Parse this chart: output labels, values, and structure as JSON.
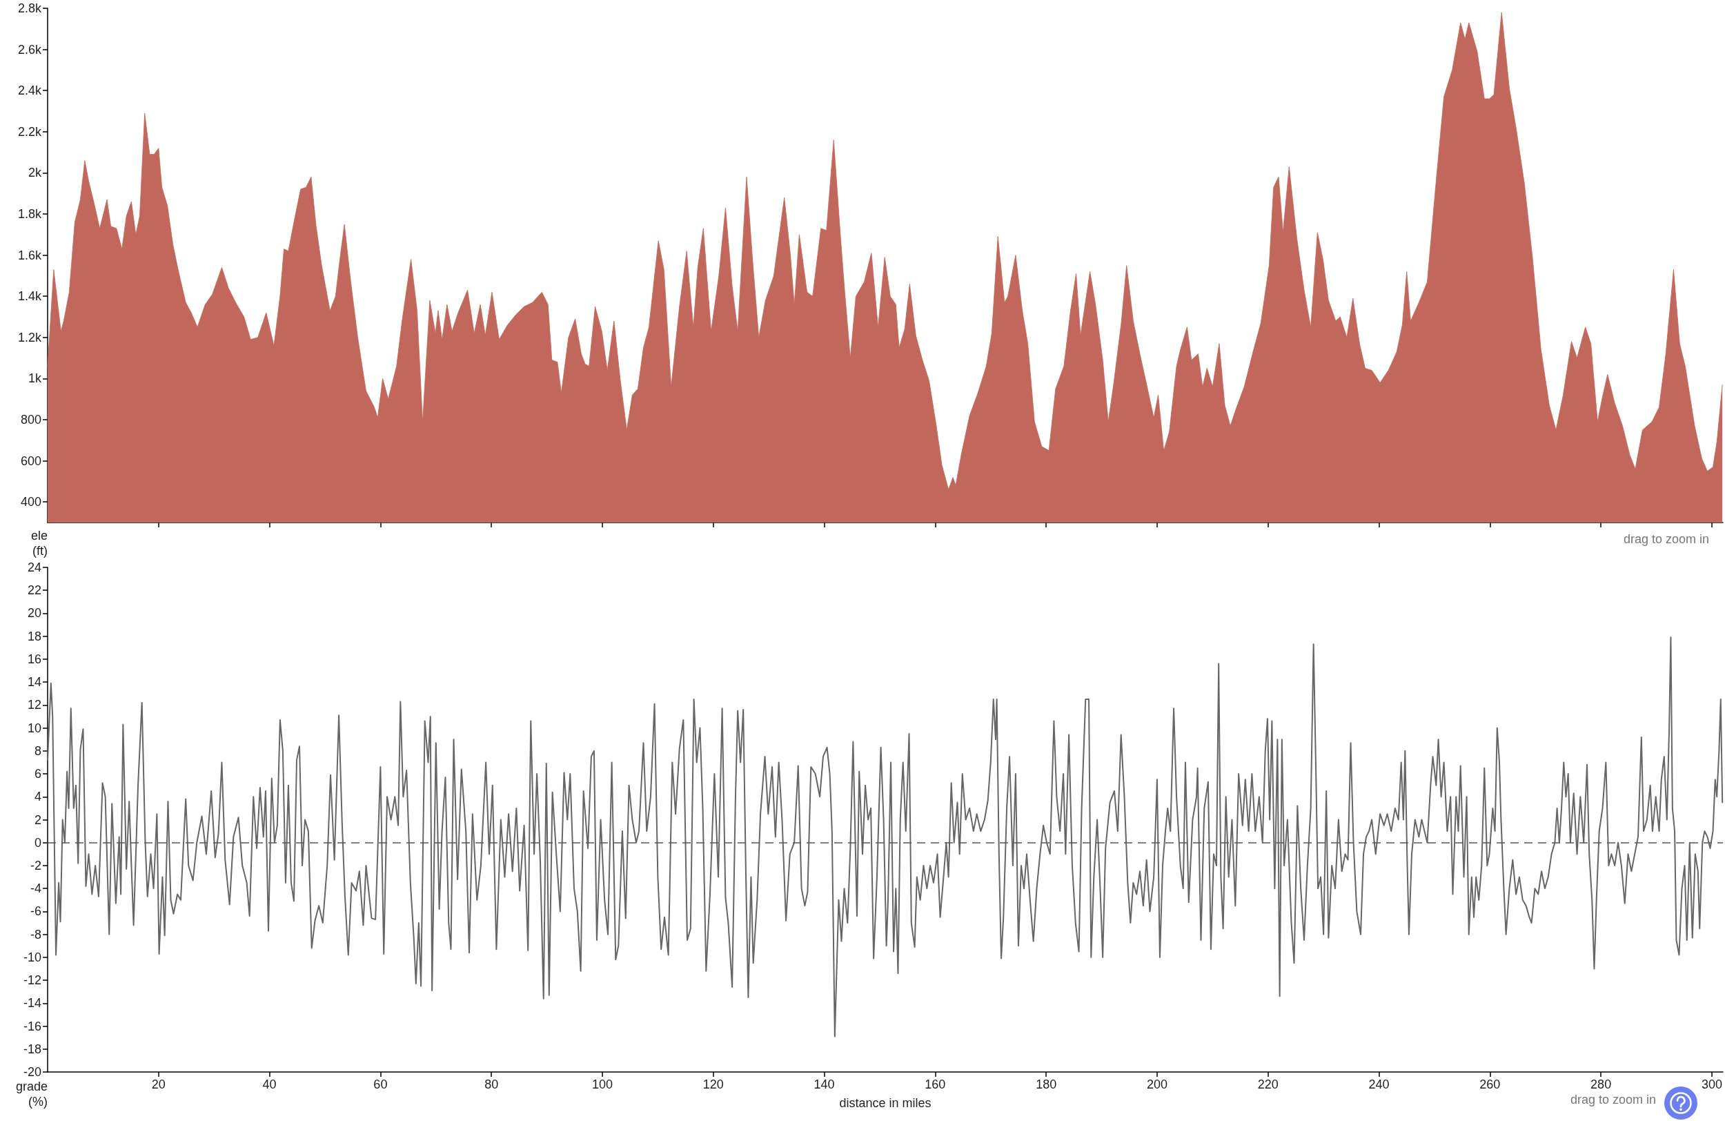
{
  "chart_data": [
    {
      "type": "area",
      "ylabel": "ele\n(ft)",
      "color": "#c1675c",
      "xlim": [
        0,
        302
      ],
      "xticks": [
        20,
        40,
        60,
        80,
        100,
        120,
        140,
        160,
        180,
        200,
        220,
        240,
        260,
        280,
        300
      ],
      "tick_labels": "y",
      "ylim": [
        300,
        2800
      ],
      "yticks": [
        400,
        600,
        800,
        {
          "value": 1000,
          "label": "1k"
        },
        {
          "value": 1200,
          "label": "1.2k"
        },
        {
          "value": 1400,
          "label": "1.4k"
        },
        {
          "value": 1600,
          "label": "1.6k"
        },
        {
          "value": 1800,
          "label": "1.8k"
        },
        {
          "value": 2000,
          "label": "2k"
        },
        {
          "value": 2200,
          "label": "2.2k"
        },
        {
          "value": 2400,
          "label": "2.4k"
        },
        {
          "value": 2600,
          "label": "2.6k"
        },
        {
          "value": 2800,
          "label": "2.8k"
        }
      ],
      "annotations": [
        "drag to zoom in"
      ],
      "x": [
        0,
        1.1,
        2.4,
        2.9,
        3.9,
        4.9,
        5.9,
        6.7,
        7.4,
        8.4,
        9.4,
        10.7,
        11.4,
        12.4,
        13.4,
        14.2,
        15.1,
        15.9,
        16.6,
        17.5,
        18.4,
        19.2,
        20,
        20.6,
        21.6,
        22.6,
        23.6,
        24.9,
        25.9,
        27,
        28.4,
        29.7,
        31.4,
        32.6,
        33.9,
        35.4,
        36.6,
        37.9,
        39.4,
        40.8,
        41.9,
        42.6,
        43.4,
        44.4,
        45.6,
        46.6,
        47.5,
        48.4,
        49.4,
        50.9,
        51.9,
        52.6,
        53.5,
        54.6,
        55.9,
        57.4,
        58.9,
        59.5,
        60.4,
        61.4,
        62.9,
        63.9,
        65.5,
        66.6,
        67.6,
        68.9,
        69.9,
        70.4,
        71.1,
        72,
        72.9,
        74,
        75.7,
        76.9,
        78,
        78.9,
        80.1,
        81.4,
        82.9,
        84.4,
        85.9,
        87.4,
        89.1,
        90.2,
        90.9,
        91.9,
        92.6,
        93.9,
        95.1,
        96.2,
        96.9,
        97.6,
        98.7,
        99.9,
        100.9,
        102.1,
        103.2,
        104.4,
        105.4,
        106.4,
        107.4,
        108.4,
        110.1,
        111.1,
        112.4,
        113.9,
        115.2,
        116.4,
        117.2,
        118.2,
        119.6,
        121,
        122.2,
        123.4,
        124.4,
        126,
        127.1,
        128.2,
        129.4,
        130.9,
        132.8,
        133.9,
        134.6,
        135.5,
        136.9,
        137.9,
        139.4,
        140.4,
        141.7,
        142.9,
        143.7,
        144.7,
        145.7,
        147.2,
        148.5,
        149.7,
        150.9,
        151.9,
        152.9,
        153.5,
        154.5,
        155.4,
        156.5,
        157.7,
        158.9,
        160.2,
        161.2,
        162.4,
        163.2,
        163.7,
        164.7,
        166.2,
        167.7,
        169.2,
        170.2,
        171.3,
        172.5,
        173.1,
        174.5,
        175.7,
        176.7,
        177.9,
        179.2,
        180.5,
        181.7,
        183.2,
        184.4,
        185.4,
        186.2,
        187.9,
        188.9,
        190.2,
        191.2,
        192.2,
        193.5,
        194.5,
        195.7,
        196.9,
        198.2,
        199.4,
        200.2,
        201.2,
        202.2,
        203.5,
        204.2,
        205.4,
        206.2,
        207.4,
        208.2,
        209,
        210,
        211.2,
        212.2,
        213.2,
        214.2,
        215.7,
        217.2,
        218.7,
        220.2,
        221,
        221.9,
        222.7,
        223.8,
        225.2,
        226.5,
        227.7,
        228.9,
        229.9,
        230.9,
        232.2,
        233,
        234.2,
        235.3,
        236.5,
        237.5,
        238.7,
        240.2,
        241.7,
        243.2,
        244.2,
        245,
        245.7,
        247.2,
        248.7,
        250.2,
        251.7,
        253.2,
        254.7,
        255.5,
        256.2,
        257.7,
        259,
        259.9,
        260.7,
        262.1,
        263.5,
        264.7,
        266.2,
        267.7,
        269.2,
        270.7,
        271.9,
        273.2,
        274.7,
        275.7,
        277.2,
        278.2,
        279.4,
        280.2,
        281.2,
        282.5,
        283.9,
        285.2,
        286.2,
        287.5,
        289.2,
        290.5,
        291.7,
        293.1,
        294.2,
        295.2,
        296.9,
        298.2,
        299.2,
        300.2,
        300.9,
        301.9
      ],
      "values": [
        1060,
        1530,
        1230,
        1280,
        1420,
        1760,
        1870,
        2060,
        1960,
        1850,
        1730,
        1870,
        1740,
        1730,
        1630,
        1790,
        1860,
        1700,
        1790,
        2290,
        2090,
        2090,
        2120,
        1930,
        1840,
        1650,
        1520,
        1370,
        1320,
        1250,
        1360,
        1410,
        1540,
        1440,
        1370,
        1300,
        1190,
        1200,
        1320,
        1160,
        1400,
        1630,
        1620,
        1760,
        1920,
        1930,
        1980,
        1740,
        1550,
        1330,
        1400,
        1560,
        1750,
        1480,
        1200,
        940,
        860,
        810,
        1000,
        900,
        1060,
        1280,
        1580,
        1330,
        790,
        1380,
        1220,
        1330,
        1190,
        1360,
        1230,
        1320,
        1430,
        1220,
        1360,
        1210,
        1420,
        1190,
        1260,
        1310,
        1350,
        1370,
        1420,
        1360,
        1090,
        1080,
        930,
        1200,
        1290,
        1120,
        1070,
        1060,
        1350,
        1230,
        1040,
        1280,
        1000,
        750,
        920,
        950,
        1150,
        1250,
        1670,
        1530,
        960,
        1350,
        1620,
        1250,
        1540,
        1730,
        1230,
        1500,
        1830,
        1450,
        1230,
        1980,
        1570,
        1200,
        1380,
        1500,
        1880,
        1600,
        1360,
        1700,
        1420,
        1400,
        1730,
        1720,
        2160,
        1700,
        1420,
        1100,
        1400,
        1470,
        1610,
        1250,
        1590,
        1400,
        1360,
        1150,
        1240,
        1460,
        1210,
        1090,
        990,
        770,
        580,
        460,
        520,
        480,
        630,
        820,
        930,
        1060,
        1220,
        1690,
        1370,
        1400,
        1600,
        1330,
        1170,
        790,
        670,
        650,
        950,
        1060,
        1330,
        1510,
        1210,
        1520,
        1360,
        1090,
        790,
        980,
        1260,
        1550,
        1280,
        1120,
        960,
        810,
        920,
        650,
        740,
        1060,
        1140,
        1250,
        1090,
        1120,
        960,
        1050,
        960,
        1170,
        870,
        770,
        850,
        960,
        1120,
        1270,
        1550,
        1930,
        1980,
        1710,
        2030,
        1680,
        1430,
        1250,
        1710,
        1580,
        1380,
        1280,
        1300,
        1200,
        1390,
        1170,
        1050,
        1040,
        980,
        1040,
        1130,
        1260,
        1520,
        1280,
        1370,
        1470,
        1930,
        2370,
        2500,
        2730,
        2650,
        2730,
        2590,
        2360,
        2360,
        2380,
        2780,
        2410,
        2220,
        1950,
        1580,
        1140,
        870,
        750,
        920,
        1180,
        1100,
        1250,
        1170,
        790,
        900,
        1020,
        880,
        770,
        630,
        560,
        750,
        790,
        860,
        1120,
        1530,
        1170,
        1060,
        770,
        610,
        550,
        570,
        690,
        970
      ]
    },
    {
      "type": "line",
      "xlabel": "distance in miles",
      "ylabel": "grade\n(%)",
      "color": "#666666",
      "xlim": [
        0,
        302
      ],
      "xticks": [
        20,
        40,
        60,
        80,
        100,
        120,
        140,
        160,
        180,
        200,
        220,
        240,
        260,
        280,
        300
      ],
      "ylim": [
        -20,
        24
      ],
      "yticks": [
        -20,
        -18,
        -16,
        -14,
        -12,
        -10,
        -8,
        -6,
        -4,
        -2,
        0,
        2,
        4,
        6,
        8,
        10,
        12,
        14,
        16,
        18,
        20,
        22,
        24
      ],
      "ref_lines": [
        {
          "axis": "y",
          "value": 0,
          "line_style": "dashed",
          "color": "#555555"
        }
      ],
      "annotations": [
        "drag to zoom in"
      ],
      "x": [
        0,
        0.6,
        0.9,
        1.5,
        2,
        2.3,
        2.7,
        3.1,
        3.5,
        3.8,
        4.2,
        4.7,
        5.1,
        5.5,
        5.9,
        6.4,
        6.9,
        7.4,
        8,
        8.6,
        9.2,
        9.9,
        10.4,
        11.1,
        11.6,
        12.3,
        12.9,
        13.2,
        13.6,
        14.2,
        14.7,
        15.1,
        15.5,
        16.3,
        17,
        17.6,
        18,
        18.6,
        19.1,
        19.7,
        20.1,
        20.7,
        21.1,
        21.7,
        22.2,
        22.7,
        23.4,
        24,
        24.9,
        25.4,
        26.2,
        26.9,
        27.8,
        28.6,
        29.5,
        30.2,
        30.8,
        31.4,
        32,
        32.8,
        33.5,
        34.4,
        35.1,
        35.9,
        36.4,
        37.1,
        37.7,
        38.3,
        38.9,
        39.3,
        39.8,
        40.4,
        40.9,
        41.4,
        41.9,
        42.4,
        42.9,
        43.4,
        43.9,
        44.4,
        44.9,
        45.4,
        45.9,
        46.4,
        47,
        47.6,
        48.2,
        48.9,
        49.6,
        50.4,
        51,
        51.7,
        52.5,
        53.1,
        53.6,
        54.2,
        54.8,
        55.6,
        56.2,
        56.9,
        57.4,
        58.4,
        59.1,
        60,
        60.6,
        61.2,
        61.9,
        62.6,
        63.2,
        63.6,
        64.1,
        64.7,
        65.4,
        66,
        66.4,
        66.9,
        67.3,
        68,
        68.6,
        69,
        69.3,
        70,
        70.6,
        71.1,
        71.7,
        72.3,
        72.7,
        73.2,
        73.9,
        74.6,
        75.4,
        76,
        76.6,
        77.4,
        78.1,
        79,
        79.6,
        80.2,
        80.9,
        81.7,
        82.4,
        83.1,
        83.8,
        84.5,
        85.1,
        85.9,
        86.6,
        87.1,
        87.7,
        88.2,
        88.8,
        89.4,
        89.9,
        90.4,
        91,
        91.7,
        92.4,
        93.1,
        93.7,
        94.2,
        94.9,
        95.5,
        96.1,
        96.6,
        97.4,
        98,
        98.5,
        99,
        99.7,
        100.4,
        101,
        101.7,
        102.4,
        102.9,
        103.6,
        104.2,
        104.8,
        105.4,
        106.1,
        106.6,
        107.4,
        108,
        108.7,
        109.4,
        110,
        110.6,
        111.2,
        111.9,
        112.6,
        113.2,
        113.9,
        114.6,
        115.3,
        115.9,
        116.5,
        117,
        117.6,
        118.1,
        118.7,
        119.4,
        120.2,
        120.9,
        121.6,
        122.2,
        122.7,
        123.4,
        124,
        124.4,
        124.9,
        125.4,
        125.9,
        126.3,
        126.8,
        127.2,
        127.9,
        128.5,
        129.3,
        129.9,
        130.6,
        131.2,
        131.8,
        132.4,
        133.1,
        133.8,
        134.6,
        135.3,
        135.9,
        136.5,
        137,
        137.6,
        138.4,
        139.2,
        139.8,
        140.5,
        141,
        141.4,
        141.9,
        142.6,
        143.1,
        143.6,
        144.2,
        144.7,
        145.2,
        145.9,
        146.3,
        146.9,
        147.4,
        147.9,
        148.4,
        148.9,
        149.5,
        150.2,
        150.7,
        151.2,
        151.5,
        152,
        152.5,
        152.9,
        153.3,
        153.7,
        154.2,
        154.7,
        155.3,
        155.7,
        156.3,
        156.7,
        157.3,
        157.9,
        158.5,
        159.1,
        159.7,
        160.4,
        160.9,
        161.5,
        162,
        162.4,
        162.9,
        163.4,
        164,
        164.4,
        164.9,
        165.5,
        166.2,
        166.9,
        167.5,
        168.2,
        168.9,
        169.5,
        170,
        170.5,
        170.9,
        171.1,
        171.5,
        171.9,
        172.3,
        172.9,
        173.4,
        174,
        174.5,
        175,
        175.5,
        176,
        176.5,
        177.1,
        177.7,
        178.3,
        178.9,
        179.5,
        180.1,
        180.7,
        181.4,
        181.9,
        182.5,
        183.1,
        183.5,
        184.1,
        184.7,
        185.3,
        185.9,
        186.4,
        187.1,
        187.7,
        188.1,
        188.6,
        189.2,
        189.7,
        190.2,
        190.7,
        191.5,
        192.3,
        192.9,
        193.5,
        194.1,
        194.7,
        195.2,
        195.7,
        196.3,
        196.9,
        197.5,
        198.1,
        198.7,
        199.4,
        200,
        200.5,
        201,
        201.5,
        201.9,
        202.4,
        203,
        203.5,
        204.2,
        204.7,
        205.1,
        205.7,
        206.4,
        207.1,
        207.3,
        207.9,
        208.5,
        209.2,
        209.7,
        210.2,
        210.7,
        211.1,
        211.5,
        211.9,
        212.4,
        212.9,
        213.5,
        214.1,
        214.7,
        215.4,
        215.9,
        216.5,
        217.1,
        217.7,
        218.4,
        219,
        219.5,
        219.9,
        220.3,
        220.7,
        221.2,
        221.7,
        222.1,
        222.5,
        222.9,
        223.5,
        224.2,
        224.7,
        225.3,
        225.9,
        226.5,
        227.1,
        227.7,
        228.2,
        228.6,
        229,
        229.5,
        230,
        230.5,
        230.9,
        231.5,
        232.1,
        232.7,
        233.3,
        233.9,
        234.4,
        234.9,
        235.4,
        236,
        236.7,
        237.2,
        237.7,
        238.2,
        238.7,
        239.4,
        240.2,
        240.9,
        241.5,
        242.2,
        242.9,
        243.5,
        244,
        244.4,
        244.7,
        245.1,
        245.4,
        245.9,
        246.5,
        247.2,
        247.7,
        248.2,
        248.7,
        249.3,
        249.7,
        250.3,
        250.7,
        251.2,
        251.7,
        252.3,
        252.9,
        253.3,
        253.9,
        254.3,
        254.7,
        255.3,
        255.8,
        256.2,
        256.7,
        257.1,
        257.5,
        258,
        258.5,
        259,
        259.5,
        259.9,
        260.5,
        260.9,
        261.3,
        261.7,
        262,
        262.5,
        262.9,
        263.5,
        264.1,
        264.7,
        265.3,
        265.9,
        266.5,
        267.1,
        267.5,
        268.1,
        268.7,
        269.3,
        269.9,
        270.5,
        271.1,
        271.7,
        272.1,
        272.5,
        272.9,
        273.3,
        273.7,
        274.1,
        274.5,
        275.1,
        275.7,
        276.3,
        276.9,
        277.5,
        277.9,
        278.4,
        278.8,
        279.2,
        279.7,
        280.3,
        280.9,
        281.4,
        281.9,
        282.5,
        283.1,
        283.7,
        284.3,
        284.9,
        285.5,
        286.1,
        286.7,
        287.3,
        287.7,
        288.3,
        288.9,
        289.3,
        289.9,
        290.5,
        290.9,
        291.4,
        291.9,
        292.3,
        292.6,
        292.9,
        293.3,
        293.6,
        294.1,
        294.6,
        295.1,
        295.5,
        296,
        296.5,
        297,
        297.5,
        297.8,
        298.3,
        298.7,
        299.2,
        299.7,
        300.2,
        300.6,
        300.9,
        301.3,
        301.6,
        301.9
      ],
      "values": [
        7.2,
        13.9,
        11,
        -9.8,
        -3.5,
        -6.9,
        2,
        0,
        6.2,
        3,
        11.7,
        3,
        5,
        -1.8,
        8.1,
        9.9,
        -3.8,
        -1,
        -4.5,
        -2,
        -4.7,
        5.2,
        4,
        -8,
        3.4,
        -5.3,
        0.5,
        -4.5,
        10.3,
        -2.3,
        3.6,
        -2,
        -7.2,
        5,
        12.2,
        0,
        -4.7,
        -1,
        -4,
        2.5,
        -9.7,
        -3,
        -8.1,
        3.6,
        -5,
        -6.2,
        -4.5,
        -5,
        3.8,
        -2,
        -3.3,
        0,
        2.3,
        -1,
        4.5,
        -1.3,
        0.8,
        7,
        -1.5,
        -5.4,
        0.5,
        2.2,
        -2,
        -3.5,
        -6.4,
        4,
        -0.5,
        4.8,
        0.5,
        4.5,
        -7.7,
        5.6,
        0,
        1.5,
        10.7,
        8,
        -3.5,
        5,
        -3.5,
        -5.1,
        7.2,
        8.4,
        -2,
        2,
        1,
        -9.2,
        -6.8,
        -5.5,
        -7,
        -2,
        5.9,
        -1.5,
        11.1,
        1.5,
        -4.7,
        -9.8,
        -3.5,
        -4.2,
        -2.5,
        -7.2,
        -2,
        -6.6,
        -6.7,
        6.6,
        -9.7,
        4,
        2,
        4,
        1.5,
        12.3,
        4,
        6.3,
        -3.5,
        -8.2,
        -12.3,
        -7,
        -12.5,
        10.6,
        7,
        11,
        -12.9,
        8.7,
        -5.8,
        1,
        5.7,
        -7,
        -9.3,
        9,
        -3.2,
        6.4,
        1,
        -9.6,
        2.5,
        -5,
        -2,
        7,
        -1,
        5,
        -9.3,
        2,
        -3,
        2.5,
        -2.5,
        3,
        -4.2,
        1.5,
        -9.4,
        10.6,
        -1,
        6,
        -1.5,
        -13.6,
        6.9,
        -13.3,
        4.4,
        -1,
        -6,
        6.1,
        2,
        6,
        -4,
        -6,
        -11.2,
        4.5,
        -0.5,
        7.5,
        8,
        -8.5,
        2,
        -5,
        -8,
        7,
        -10.2,
        -9,
        1,
        -6.6,
        5,
        2,
        0,
        1,
        8.7,
        1,
        4,
        12.1,
        -3,
        -9.3,
        -6.5,
        -9.8,
        7,
        2.5,
        8.2,
        10.7,
        -8.5,
        -7.5,
        12.5,
        7,
        10,
        3,
        -11.2,
        -4.5,
        6,
        -3,
        11.7,
        -4.8,
        -7,
        -12.6,
        4,
        11.5,
        7,
        11.6,
        -3.5,
        -13.5,
        -3,
        -10.5,
        -5,
        2.5,
        7.5,
        2.5,
        6.6,
        0.5,
        7,
        2,
        -6.8,
        -1,
        0,
        6.7,
        -4,
        -5.5,
        -4.3,
        6.6,
        6,
        4,
        7.5,
        8.3,
        6,
        1,
        -16.9,
        -5,
        -8.6,
        -4,
        -7,
        -0.5,
        8.8,
        -6.4,
        6.2,
        -1,
        5,
        2,
        3,
        -10.1,
        -3,
        8.3,
        2,
        -9,
        -5,
        7,
        -9.5,
        -4,
        -11.4,
        2,
        7,
        1,
        9.5,
        -7,
        -9.1,
        -3,
        -5,
        -2,
        -4,
        -2,
        -3.5,
        -1,
        -6.5,
        -3,
        0,
        -3,
        5.2,
        0,
        3.5,
        -1,
        6,
        2,
        3,
        1,
        2.5,
        1,
        2,
        3.7,
        7,
        12.5,
        9,
        12.5,
        -1,
        -10.1,
        -6.5,
        3,
        7.5,
        -2,
        6,
        -9,
        -2,
        -4,
        -1,
        -5,
        -8.6,
        -4,
        -1,
        1.5,
        0,
        -1,
        10.6,
        4,
        1,
        6,
        -1,
        9.4,
        -2,
        -7,
        -9.5,
        3,
        12.5,
        12.5,
        -10,
        -3,
        2,
        -3.5,
        -10,
        -0.5,
        3.5,
        4.5,
        1,
        9.4,
        4,
        -3.5,
        -7,
        -3.5,
        -4.5,
        -2.5,
        -5.5,
        -1.5,
        -6,
        -3,
        5.5,
        -10,
        -2,
        1,
        3,
        1,
        11.7,
        4,
        -2,
        -4,
        7,
        -5.2,
        2,
        4,
        6.5,
        -8.5,
        3,
        5.3,
        -9.3,
        -1,
        -2,
        15.6,
        -3,
        -7.5,
        4,
        -3,
        2,
        -5.5,
        6,
        1.5,
        5.5,
        1,
        6,
        1,
        4,
        0,
        8,
        10.8,
        2,
        10.6,
        -4,
        9,
        -13.4,
        9,
        -2,
        2,
        -7,
        -10.5,
        3.2,
        -4,
        -8.5,
        -2,
        3,
        17.3,
        7,
        -4,
        -3,
        -8,
        4.5,
        -8.3,
        -2,
        -4,
        2,
        -2.5,
        -1,
        -1.5,
        8.7,
        0,
        -6,
        -8,
        -1,
        0.5,
        1,
        2,
        -1,
        2.5,
        1.5,
        2.5,
        1,
        3,
        2,
        7,
        2,
        8,
        -2,
        -8,
        -1,
        2,
        0.5,
        2,
        1,
        0,
        5,
        7.5,
        5,
        9,
        4,
        7,
        1,
        4,
        -4.5,
        4,
        1,
        6.7,
        -3,
        4,
        -8,
        -3,
        -6.5,
        -3,
        -5,
        -2,
        6.5,
        -2,
        -1,
        3,
        1,
        10,
        7,
        2,
        -4,
        -8,
        -4,
        -1.5,
        -4.5,
        -3,
        -5,
        -5.5,
        -6.5,
        -7,
        -4,
        -4.5,
        -2.5,
        -4,
        -3,
        -1,
        0,
        3,
        0,
        3,
        7,
        4,
        6,
        0,
        4.3,
        -1,
        4,
        0,
        6.8,
        -1,
        -5,
        -11,
        -5,
        1,
        3,
        7,
        -2,
        -1,
        -2,
        0,
        -2,
        -5.3,
        -1,
        -2.5,
        -1,
        0.5,
        9.2,
        1,
        2,
        5,
        1,
        4,
        1,
        5.5,
        7.5,
        2,
        9.7,
        17.9,
        3,
        1,
        -8.5,
        -9.8,
        -4,
        -2,
        -8.5,
        0,
        -8.3,
        -1,
        -2.5,
        -7.5,
        0,
        1,
        0.5,
        -0.5,
        1,
        5.5,
        4,
        8,
        12.5,
        3.5
      ]
    }
  ]
}
